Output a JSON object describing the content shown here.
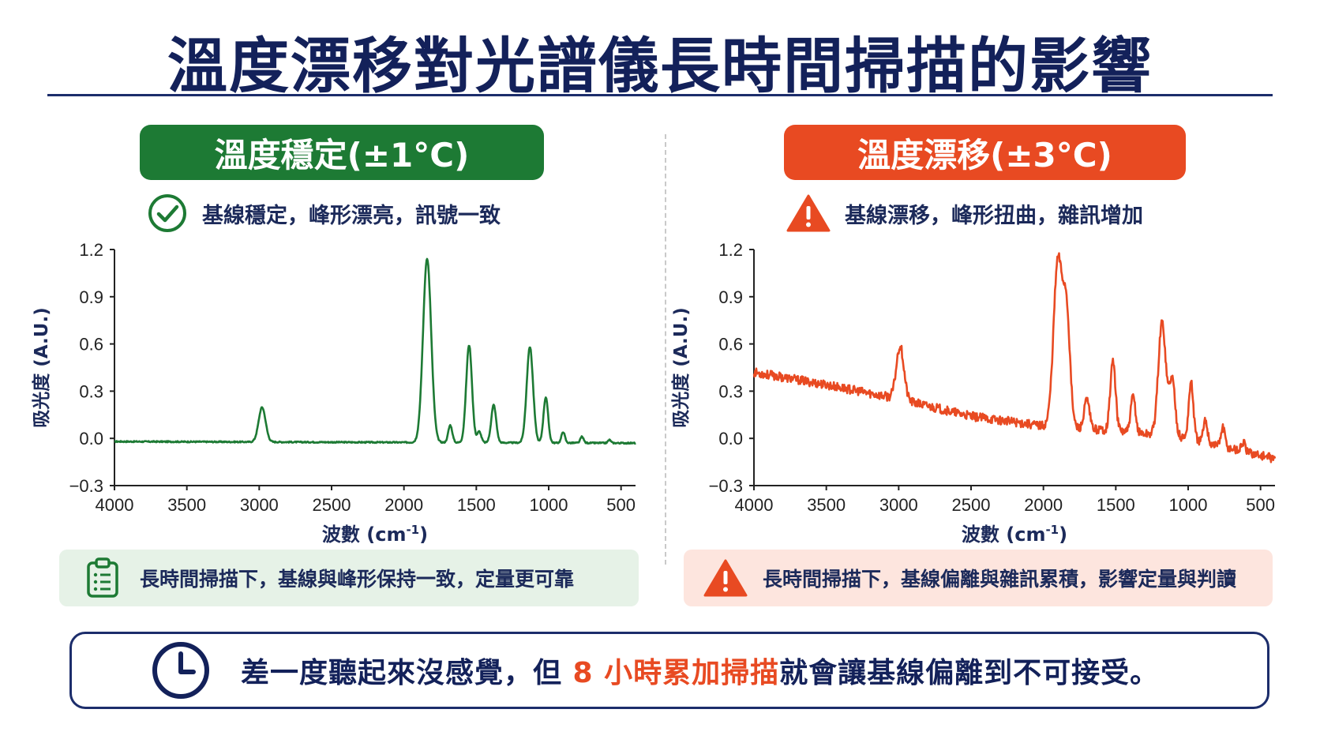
{
  "title": "溫度漂移對光譜儀長時間掃描的影響",
  "panels": {
    "left": {
      "badge": "溫度穩定(±1°C)",
      "subtitle": "基線穩定，峰形漂亮，訊號一致",
      "callout": "長時間掃描下，基線與峰形保持一致，定量更可靠",
      "icon": "check-circle-icon",
      "color": "#1d7a34"
    },
    "right": {
      "badge": "溫度漂移(±3°C)",
      "subtitle": "基線漂移，峰形扭曲，雜訊增加",
      "callout": "長時間掃描下，基線偏離與雜訊累積，影響定量與判讀",
      "icon": "warning-triangle-icon",
      "color": "#e84a22"
    }
  },
  "footer": {
    "text_before": "差一度聽起來沒感覺，但 ",
    "highlight": "8 小時累加掃描",
    "text_after": "就會讓基線偏離到不可接受。",
    "icon": "clock-icon"
  },
  "chart_data": [
    {
      "type": "line",
      "ylabel": "吸光度 (A.U.)",
      "xlabel_main": "波數 (cm",
      "xlabel_sup": "-1",
      "xlabel_end": ")",
      "xlim": [
        4000,
        400
      ],
      "ylim": [
        -0.3,
        1.2
      ],
      "x_ticks": [
        "4000",
        "3500",
        "3000",
        "2500",
        "2000",
        "1500",
        "1000",
        "500"
      ],
      "y_ticks": [
        "1.2",
        "0.9",
        "0.6",
        "0.3",
        "0.0",
        "−0.3"
      ],
      "color": "#1d7a34",
      "baseline": [
        [
          4000,
          -0.02
        ],
        [
          400,
          -0.03
        ]
      ],
      "noise": 0.004,
      "peaks": [
        {
          "x": 2980,
          "height": 0.22,
          "width": 24
        },
        {
          "x": 1840,
          "height": 1.17,
          "width": 28
        },
        {
          "x": 1680,
          "height": 0.11,
          "width": 14
        },
        {
          "x": 1550,
          "height": 0.62,
          "width": 20
        },
        {
          "x": 1480,
          "height": 0.07,
          "width": 14
        },
        {
          "x": 1380,
          "height": 0.24,
          "width": 17
        },
        {
          "x": 1130,
          "height": 0.61,
          "width": 22
        },
        {
          "x": 1020,
          "height": 0.29,
          "width": 16
        },
        {
          "x": 900,
          "height": 0.07,
          "width": 12
        },
        {
          "x": 770,
          "height": 0.04,
          "width": 11
        },
        {
          "x": 580,
          "height": 0.02,
          "width": 10
        }
      ]
    },
    {
      "type": "line",
      "ylabel": "吸光度 (A.U.)",
      "xlabel_main": "波數 (cm",
      "xlabel_sup": "-1",
      "xlabel_end": ")",
      "xlim": [
        4000,
        400
      ],
      "ylim": [
        -0.3,
        1.2
      ],
      "x_ticks": [
        "4000",
        "3500",
        "3000",
        "2500",
        "2000",
        "1500",
        "1000",
        "500"
      ],
      "y_ticks": [
        "1.2",
        "0.9",
        "0.6",
        "0.3",
        "0.0",
        "−0.3"
      ],
      "color": "#e84a22",
      "baseline": [
        [
          4000,
          0.42
        ],
        [
          3500,
          0.34
        ],
        [
          3000,
          0.25
        ],
        [
          2500,
          0.14
        ],
        [
          2000,
          0.08
        ],
        [
          1500,
          0.05
        ],
        [
          1000,
          0.0
        ],
        [
          400,
          -0.13
        ]
      ],
      "noise": 0.028,
      "peaks": [
        {
          "x": 2990,
          "height": 0.34,
          "width": 26
        },
        {
          "x": 1900,
          "height": 1.05,
          "width": 30
        },
        {
          "x": 1840,
          "height": 0.7,
          "width": 24
        },
        {
          "x": 1700,
          "height": 0.18,
          "width": 18
        },
        {
          "x": 1520,
          "height": 0.44,
          "width": 18
        },
        {
          "x": 1380,
          "height": 0.23,
          "width": 16
        },
        {
          "x": 1180,
          "height": 0.72,
          "width": 26
        },
        {
          "x": 1110,
          "height": 0.36,
          "width": 20
        },
        {
          "x": 980,
          "height": 0.36,
          "width": 16
        },
        {
          "x": 880,
          "height": 0.14,
          "width": 14
        },
        {
          "x": 760,
          "height": 0.12,
          "width": 14
        },
        {
          "x": 620,
          "height": 0.06,
          "width": 12
        }
      ]
    }
  ]
}
